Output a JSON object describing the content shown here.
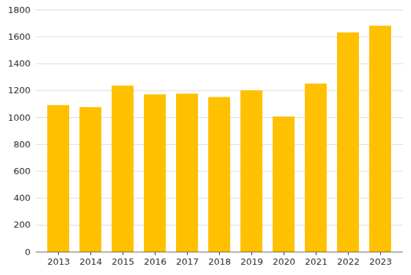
{
  "chart_data": {
    "type": "bar",
    "categories": [
      "2013",
      "2014",
      "2015",
      "2016",
      "2017",
      "2018",
      "2019",
      "2020",
      "2021",
      "2022",
      "2023"
    ],
    "values": [
      1090,
      1075,
      1235,
      1170,
      1175,
      1150,
      1200,
      1005,
      1250,
      1630,
      1680
    ],
    "color": "#ffc000",
    "ylim": [
      0,
      1800
    ],
    "yticks": [
      0,
      200,
      400,
      600,
      800,
      1000,
      1200,
      1400,
      1600,
      1800
    ],
    "grid": true
  }
}
